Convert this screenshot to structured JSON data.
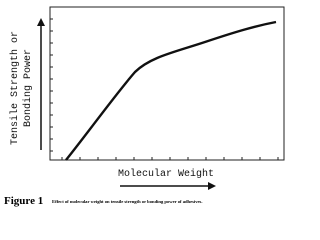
{
  "figure": {
    "y_label": [
      "Tensile Strength or",
      "Bonding Power"
    ],
    "x_label": "Molecular Weight"
  },
  "caption": {
    "label": "Figure 1",
    "text": "Effect of molecular weight on tensile strength or bonding power of adhesives."
  }
}
